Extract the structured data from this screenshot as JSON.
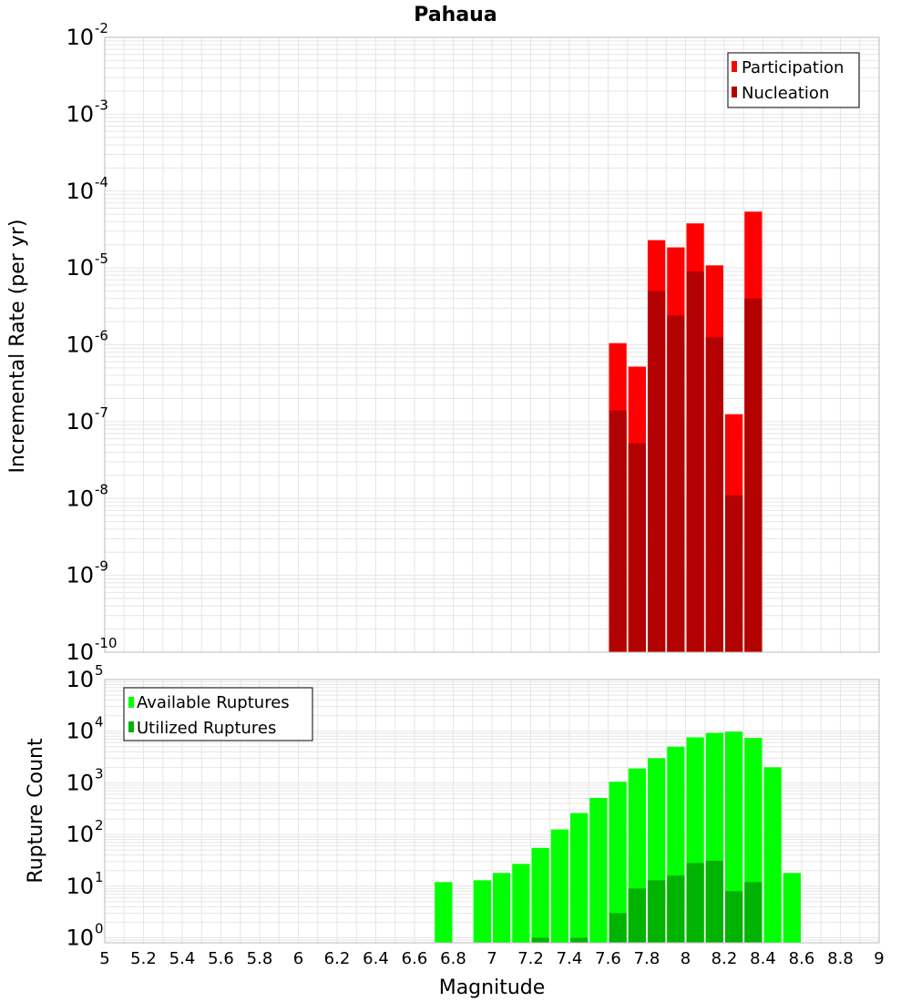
{
  "title": "Pahaua",
  "colors": {
    "participation": "#ff0000",
    "nucleation": "#b30000",
    "available": "#00ff00",
    "utilized": "#00b300",
    "gridline": "#e6e6e6",
    "frame": "#bbbbbb"
  },
  "chart_data": [
    {
      "type": "bar",
      "name": "rate-chart",
      "yscale": "log",
      "ylabel": "Incremental Rate (per yr)",
      "xlabel": "Magnitude",
      "xlim": [
        5,
        9
      ],
      "ylim": [
        1e-10,
        0.01
      ],
      "bin_width": 0.1,
      "y_ticks": [
        {
          "value": 1e-10,
          "base": "10",
          "exp": "-10"
        },
        {
          "value": 1e-09,
          "base": "10",
          "exp": "-9"
        },
        {
          "value": 1e-08,
          "base": "10",
          "exp": "-8"
        },
        {
          "value": 1e-07,
          "base": "10",
          "exp": "-7"
        },
        {
          "value": 1e-06,
          "base": "10",
          "exp": "-6"
        },
        {
          "value": 1e-05,
          "base": "10",
          "exp": "-5"
        },
        {
          "value": 0.0001,
          "base": "10",
          "exp": "-4"
        },
        {
          "value": 0.001,
          "base": "10",
          "exp": "-3"
        },
        {
          "value": 0.01,
          "base": "10",
          "exp": "-2"
        }
      ],
      "legend": {
        "position": "top-right",
        "entries": [
          "Participation",
          "Nucleation"
        ]
      },
      "series": [
        {
          "name": "Participation",
          "color_key": "participation",
          "x": [
            7.65,
            7.75,
            7.85,
            7.95,
            8.05,
            8.15,
            8.25,
            8.35
          ],
          "values": [
            1.05e-06,
            5.2e-07,
            2.3e-05,
            1.85e-05,
            3.8e-05,
            1.08e-05,
            1.25e-07,
            5.4e-05
          ]
        },
        {
          "name": "Nucleation",
          "color_key": "nucleation",
          "x": [
            7.65,
            7.75,
            7.85,
            7.95,
            8.05,
            8.15,
            8.25,
            8.35
          ],
          "values": [
            1.4e-07,
            5.2e-08,
            5e-06,
            2.4e-06,
            9e-06,
            1.25e-06,
            1.1e-08,
            4e-06
          ]
        }
      ]
    },
    {
      "type": "bar",
      "name": "count-chart",
      "yscale": "log",
      "ylabel": "Rupture Count",
      "xlabel": "Magnitude",
      "xlim": [
        5,
        9
      ],
      "ylim": [
        0.8,
        100000.0
      ],
      "bin_width": 0.1,
      "x_ticks": [
        "5",
        "5.2",
        "5.4",
        "5.6",
        "5.8",
        "6",
        "6.2",
        "6.4",
        "6.6",
        "6.8",
        "7",
        "7.2",
        "7.4",
        "7.6",
        "7.8",
        "8",
        "8.2",
        "8.4",
        "8.6",
        "8.8",
        "9"
      ],
      "y_ticks": [
        {
          "value": 1,
          "base": "10",
          "exp": "0"
        },
        {
          "value": 10,
          "base": "10",
          "exp": "1"
        },
        {
          "value": 100,
          "base": "10",
          "exp": "2"
        },
        {
          "value": 1000,
          "base": "10",
          "exp": "3"
        },
        {
          "value": 10000,
          "base": "10",
          "exp": "4"
        },
        {
          "value": 100000,
          "base": "10",
          "exp": "5"
        }
      ],
      "legend": {
        "position": "top-left",
        "entries": [
          "Available Ruptures",
          "Utilized Ruptures"
        ]
      },
      "series": [
        {
          "name": "Available Ruptures",
          "color_key": "available",
          "x": [
            6.75,
            6.95,
            7.05,
            7.15,
            7.25,
            7.35,
            7.45,
            7.55,
            7.65,
            7.75,
            7.85,
            7.95,
            8.05,
            8.15,
            8.25,
            8.35,
            8.45,
            8.55
          ],
          "values": [
            12,
            13,
            18,
            27,
            55,
            125,
            260,
            510,
            1050,
            1900,
            3000,
            5000,
            7600,
            9300,
            9800,
            7400,
            2000,
            18
          ]
        },
        {
          "name": "Utilized Ruptures",
          "color_key": "utilized",
          "x": [
            7.25,
            7.45,
            7.65,
            7.75,
            7.85,
            7.95,
            8.05,
            8.15,
            8.25,
            8.35
          ],
          "values": [
            1,
            1,
            3,
            9,
            13,
            16,
            28,
            31,
            8,
            12
          ]
        }
      ]
    }
  ]
}
